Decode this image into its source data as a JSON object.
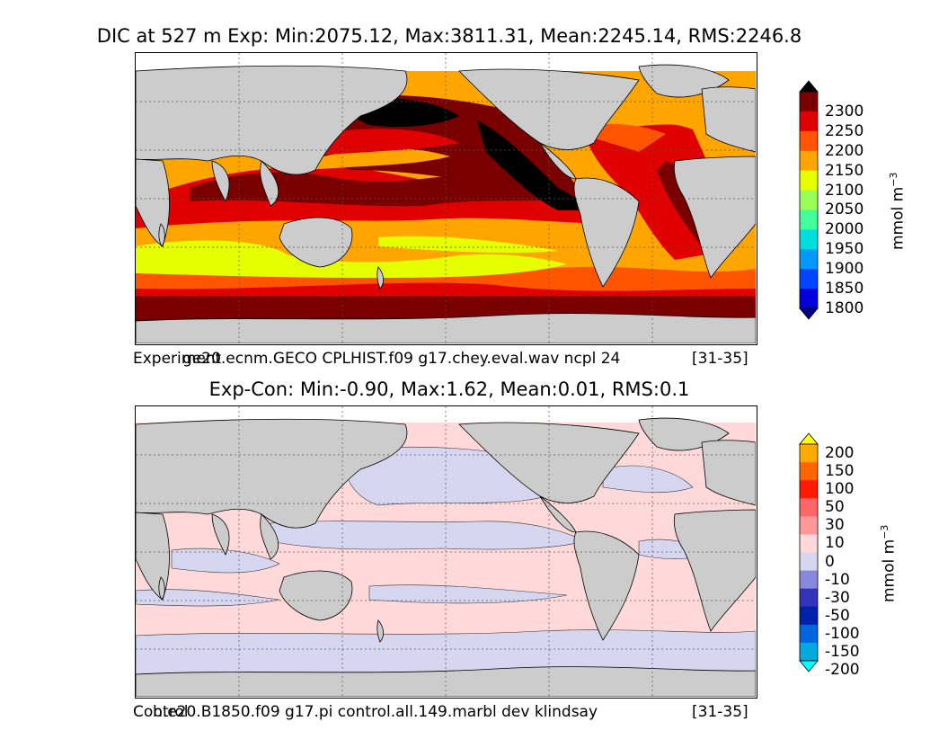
{
  "top_panel": {
    "title": "DIC at 527 m Exp: Min:2075.12, Max:3811.31, Mean:2245.14, RMS:2246.8",
    "caption_left": "Experiment",
    "caption_mid": "ge20.ecnm.GECO CPLHIST.f09 g17.chey.eval.wav ncpl 24",
    "caption_right": "[31-35]",
    "colorbar": {
      "units": "mmol m",
      "units_sup": "−3",
      "ticks": [
        "2300",
        "2250",
        "2200",
        "2150",
        "2100",
        "2050",
        "2000",
        "1950",
        "1900",
        "1850",
        "1800"
      ],
      "colors": [
        "#000000",
        "#7a0000",
        "#e00000",
        "#ff5500",
        "#ffa500",
        "#e6ff00",
        "#99ff55",
        "#44ff99",
        "#00dddd",
        "#0099ff",
        "#0044ff",
        "#0000dd",
        "#000080"
      ]
    }
  },
  "bottom_panel": {
    "title": "Exp-Con: Min:-0.90, Max:1.62, Mean:0.01, RMS:0.1",
    "caption_left": "Control",
    "caption_mid": "b.e20.B1850.f09 g17.pi control.all.149.marbl dev klindsay",
    "caption_right": "[31-35]",
    "colorbar": {
      "units": "mmol m",
      "units_sup": "−3",
      "ticks": [
        "200",
        "150",
        "100",
        "50",
        "30",
        "10",
        "0",
        "-10",
        "-30",
        "-50",
        "-100",
        "-150",
        "-200"
      ],
      "colors": [
        "#ffff00",
        "#ffaa00",
        "#ff6600",
        "#ff1a00",
        "#ff6666",
        "#ff9999",
        "#ffd9d9",
        "#d6d6f0",
        "#8888dd",
        "#3333bb",
        "#0022aa",
        "#0066dd",
        "#00aadd",
        "#00ffff"
      ]
    }
  },
  "chart_data": [
    {
      "type": "heatmap",
      "title": "DIC at 527 m Exp: Min:2075.12, Max:3811.31, Mean:2245.14, RMS:2246.8",
      "colorbar_levels": [
        1800,
        1850,
        1900,
        1950,
        2000,
        2050,
        2100,
        2150,
        2200,
        2250,
        2300
      ],
      "units": "mmol m-3",
      "stats": {
        "min": 2075.12,
        "max": 3811.31,
        "mean": 2245.14,
        "rms": 2246.8
      }
    },
    {
      "type": "heatmap",
      "title": "Exp-Con: Min:-0.90, Max:1.62, Mean:0.01, RMS:0.1",
      "colorbar_levels": [
        -200,
        -150,
        -100,
        -50,
        -30,
        -10,
        0,
        10,
        30,
        50,
        100,
        150,
        200
      ],
      "units": "mmol m-3",
      "stats": {
        "min": -0.9,
        "max": 1.62,
        "mean": 0.01,
        "rms": 0.1
      }
    }
  ]
}
